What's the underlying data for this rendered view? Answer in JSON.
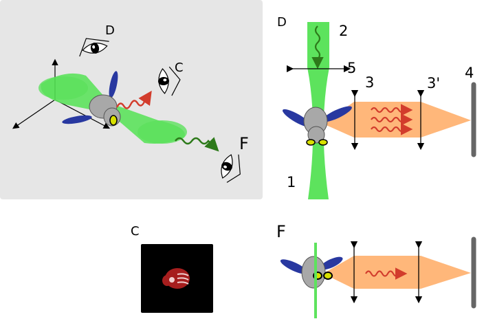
{
  "panel_3d": {
    "viewer_labels": {
      "top": "D",
      "side": "C",
      "emission": "F"
    }
  },
  "panel_top_view": {
    "view_label": "D",
    "numbers": {
      "beam_in": "1",
      "beam_down": "2",
      "lens_1": "3",
      "lens_2": "3'",
      "mirror": "4",
      "lens_small": "5"
    }
  },
  "panel_image": {
    "label": "C"
  },
  "panel_fluor": {
    "label": "F"
  },
  "colors": {
    "panel_bg": "#e6e6e6",
    "beam_green": "#5de35d",
    "wave_green": "#2d7a1a",
    "wave_red": "#d23c2c",
    "orange_beam": "#ffb77a",
    "fly_body": "#a8a8a8",
    "fly_wing": "#2838a0",
    "mirror": "#666666",
    "eye_yellow": "#d8e000",
    "camera_bg": "#000000",
    "camera_fly": "#a61e1e"
  },
  "icons": [
    "eye-icon",
    "fly-icon",
    "mirror-icon",
    "lens-icon",
    "camera-image-icon"
  ]
}
